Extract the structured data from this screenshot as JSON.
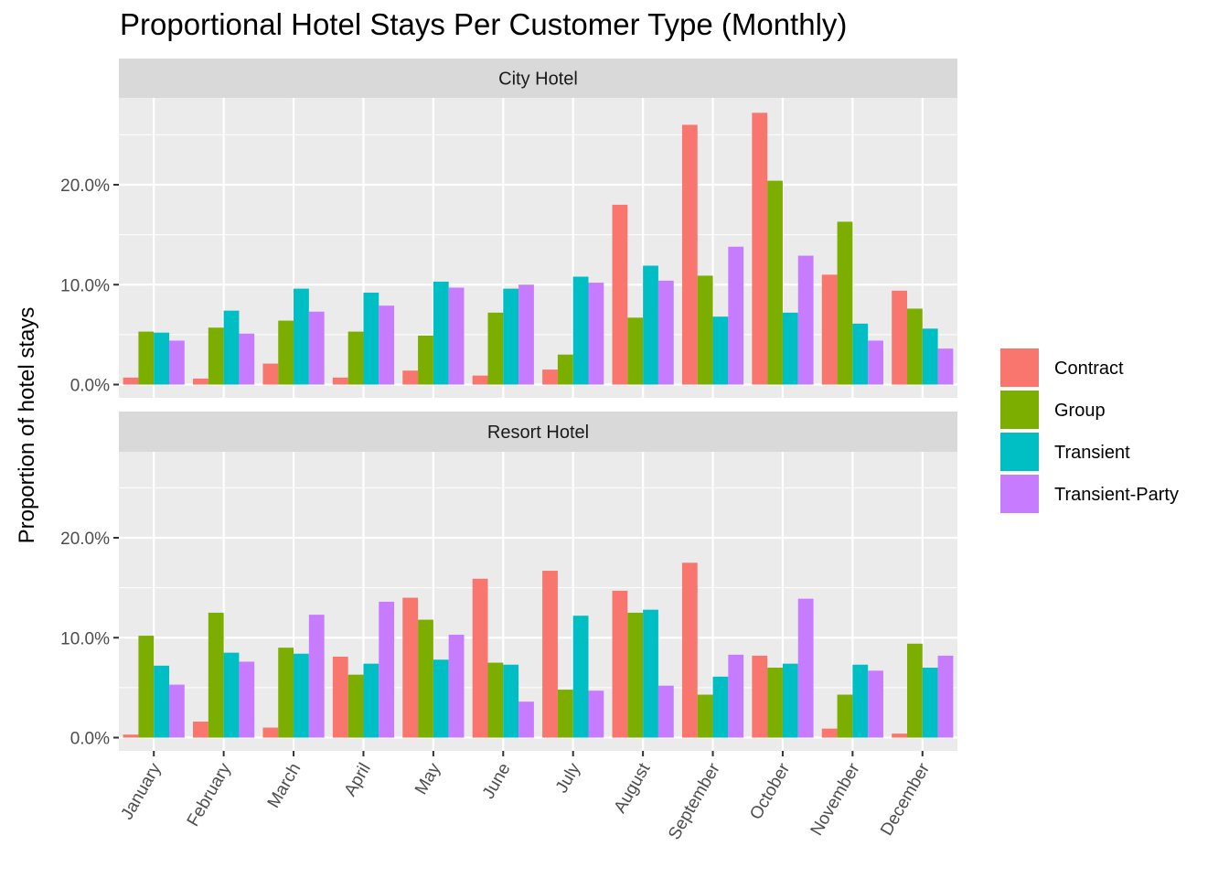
{
  "chart_data": {
    "type": "bar",
    "title": "Proportional Hotel Stays Per Customer Type (Monthly)",
    "xlabel": "",
    "ylabel": "Proportion of hotel stays",
    "categories": [
      "January",
      "February",
      "March",
      "April",
      "May",
      "June",
      "July",
      "August",
      "September",
      "October",
      "November",
      "December"
    ],
    "y_ticks": [
      0,
      10,
      20
    ],
    "y_tick_labels": [
      "0.0%",
      "10.0%",
      "20.0%"
    ],
    "ylim": [
      0,
      28
    ],
    "grid": true,
    "legend_position": "right",
    "colors": {
      "Contract": "#F8766D",
      "Group": "#7CAE00",
      "Transient": "#00BFC4",
      "Transient-Party": "#C77CFF",
      "panel_bg": "#EBEBEB",
      "strip_bg": "#D9D9D9",
      "grid": "#FFFFFF"
    },
    "legend": [
      "Contract",
      "Group",
      "Transient",
      "Transient-Party"
    ],
    "panels": [
      {
        "name": "City Hotel",
        "series": [
          {
            "name": "Contract",
            "values": [
              0.7,
              0.6,
              2.1,
              0.7,
              1.4,
              0.9,
              1.5,
              18.0,
              26.0,
              27.2,
              11.0,
              9.4
            ]
          },
          {
            "name": "Group",
            "values": [
              5.3,
              5.7,
              6.4,
              5.3,
              4.9,
              7.2,
              3.0,
              6.7,
              10.9,
              20.4,
              16.3,
              7.6
            ]
          },
          {
            "name": "Transient",
            "values": [
              5.2,
              7.4,
              9.6,
              9.2,
              10.3,
              9.6,
              10.8,
              11.9,
              6.8,
              7.2,
              6.1,
              5.6
            ]
          },
          {
            "name": "Transient-Party",
            "values": [
              4.4,
              5.1,
              7.3,
              7.9,
              9.7,
              10.0,
              10.2,
              10.4,
              13.8,
              12.9,
              4.4,
              3.6
            ]
          }
        ]
      },
      {
        "name": "Resort Hotel",
        "series": [
          {
            "name": "Contract",
            "values": [
              0.3,
              1.6,
              1.0,
              8.1,
              14.0,
              15.9,
              16.7,
              14.7,
              17.5,
              8.2,
              0.9,
              0.4
            ]
          },
          {
            "name": "Group",
            "values": [
              10.2,
              12.5,
              9.0,
              6.3,
              11.8,
              7.5,
              4.8,
              12.5,
              4.3,
              7.0,
              4.3,
              9.4
            ]
          },
          {
            "name": "Transient",
            "values": [
              7.2,
              8.5,
              8.4,
              7.4,
              7.8,
              7.3,
              12.2,
              12.8,
              6.1,
              7.4,
              7.3,
              7.0
            ]
          },
          {
            "name": "Transient-Party",
            "values": [
              5.3,
              7.6,
              12.3,
              13.6,
              10.3,
              3.6,
              4.7,
              5.2,
              8.3,
              13.9,
              6.7,
              8.2
            ]
          }
        ]
      }
    ]
  }
}
